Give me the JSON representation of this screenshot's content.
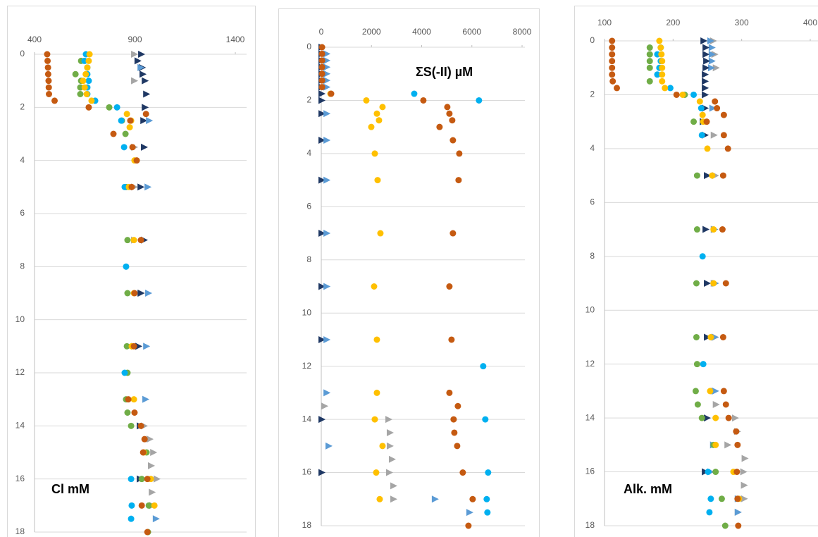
{
  "chart_data": [
    {
      "type": "scatter",
      "annotation": "Cl mM",
      "xlim": [
        400,
        1400
      ],
      "xticks": [
        400,
        900,
        1400
      ],
      "ylim": [
        0,
        18
      ],
      "yticks": [
        0,
        2,
        4,
        6,
        8,
        10,
        12,
        14,
        16,
        18
      ],
      "y_inverted": true,
      "x_axis_position": "top",
      "grid": true,
      "series": [
        {
          "color": "#a5a5a5",
          "marker": "triangle",
          "x": [
            895,
            895,
            895,
            895,
            895,
            930,
            895,
            944,
            972,
            990,
            979,
            1007,
            983,
            986
          ],
          "y": [
            0,
            1,
            3.5,
            5,
            7,
            9,
            11,
            14,
            14.5,
            15,
            15.5,
            16,
            16.5,
            17
          ]
        },
        {
          "color": "#1f3864",
          "marker": "triangle",
          "x": [
            930,
            912,
            934,
            937,
            948,
            955,
            948,
            941,
            944,
            927,
            944,
            927,
            916,
            923,
            923
          ],
          "y": [
            0,
            0.25,
            0.5,
            0.75,
            1,
            1.5,
            2,
            2.5,
            3.5,
            5,
            7,
            9,
            11,
            14,
            16
          ]
        },
        {
          "color": "#5b9bd5",
          "marker": "triangle",
          "x": [
            927,
            969,
            962,
            965,
            955,
            951,
            1003
          ],
          "y": [
            0.5,
            2.5,
            5,
            9,
            11,
            13,
            17.5
          ]
        },
        {
          "color": "#70ad47",
          "marker": "circle",
          "x": [
            632,
            604,
            632,
            628,
            628,
            772,
            835,
            853,
            856,
            863,
            863,
            860,
            863,
            856,
            863,
            881,
            958,
            934,
            969,
            965
          ],
          "y": [
            0.25,
            0.75,
            1,
            1.25,
            1.5,
            2,
            2.5,
            3,
            5,
            7,
            9,
            11,
            12,
            13,
            13.5,
            14,
            15,
            16,
            17,
            18
          ]
        },
        {
          "color": "#00b0f0",
          "marker": "circle",
          "x": [
            656,
            649,
            663,
            663,
            670,
            663,
            663,
            702,
            811,
            832,
            846,
            849,
            856,
            849,
            881,
            884,
            881
          ],
          "y": [
            0,
            0.25,
            0.5,
            0.75,
            1,
            1.25,
            1.5,
            1.75,
            2,
            2.5,
            3.5,
            5,
            8,
            12,
            16,
            17,
            17.5
          ]
        },
        {
          "color": "#ffc000",
          "marker": "circle",
          "x": [
            674,
            670,
            663,
            655,
            642,
            650,
            660,
            684,
            860,
            881,
            874,
            898,
            870,
            895,
            895,
            884,
            895,
            944,
            979,
            997
          ],
          "y": [
            0,
            0.25,
            0.5,
            0.75,
            1,
            1.25,
            1.5,
            1.75,
            2.25,
            2.5,
            2.75,
            4,
            5,
            7,
            9,
            11,
            13,
            15,
            16,
            17
          ]
        },
        {
          "color": "#c55a11",
          "marker": "circle",
          "x": [
            463,
            465,
            467,
            468,
            470,
            471,
            472,
            500,
            670,
            955,
            877,
            793,
            888,
            909,
            884,
            930,
            898,
            895,
            867,
            898,
            930,
            948,
            941,
            962,
            934,
            962
          ],
          "y": [
            0,
            0.25,
            0.5,
            0.75,
            1,
            1.25,
            1.5,
            1.75,
            2,
            2.25,
            2.5,
            3,
            3.5,
            4,
            5,
            7,
            9,
            11,
            13,
            13.5,
            14,
            14.5,
            15,
            16,
            17,
            18
          ]
        }
      ]
    },
    {
      "type": "scatter",
      "annotation": "ΣS(-II) µM",
      "xlim": [
        0,
        8000
      ],
      "xticks": [
        0,
        2000,
        4000,
        6000,
        8000
      ],
      "ylim": [
        0,
        18
      ],
      "yticks": [
        0,
        2,
        4,
        6,
        8,
        10,
        12,
        14,
        16,
        18
      ],
      "y_inverted": true,
      "x_axis_position": "top",
      "grid": true,
      "series": [
        {
          "color": "#a5a5a5",
          "marker": "triangle",
          "x": [
            112,
            2665,
            2721,
            2721,
            2805,
            2693,
            2861,
            2861
          ],
          "y": [
            13.5,
            14,
            14.5,
            15,
            15.5,
            16,
            16.5,
            17
          ]
        },
        {
          "color": "#1f3864",
          "marker": "triangle",
          "x": [
            0,
            0,
            0,
            0,
            0,
            0,
            0,
            0,
            0,
            0,
            0,
            0,
            0,
            0,
            0,
            0,
            0
          ],
          "y": [
            0,
            0.25,
            0.5,
            0.75,
            1,
            1.25,
            1.5,
            1.75,
            2,
            2.5,
            3.5,
            5,
            7,
            9,
            11,
            14,
            16
          ]
        },
        {
          "color": "#5b9bd5",
          "marker": "triangle",
          "x": [
            200,
            200,
            200,
            200,
            200,
            200,
            200,
            200,
            200,
            200,
            200,
            200,
            200,
            280,
            4516,
            5891
          ],
          "y": [
            0.25,
            0.5,
            0.75,
            1,
            1.25,
            1.5,
            2.5,
            3.5,
            5,
            7,
            9,
            11,
            13,
            15,
            17,
            17.5
          ]
        },
        {
          "color": "#00b0f0",
          "marker": "circle",
          "x": [
            3703,
            6283,
            6451,
            6535,
            6647,
            6591,
            6619
          ],
          "y": [
            1.75,
            2,
            12,
            14,
            16,
            17,
            17.5
          ]
        },
        {
          "color": "#ffc000",
          "marker": "circle",
          "x": [
            365,
            1795,
            2440,
            2216,
            2300,
            1992,
            2132,
            2244,
            2356,
            2104,
            2216,
            2216,
            2132,
            2440,
            2188,
            2328
          ],
          "y": [
            1.75,
            2,
            2.25,
            2.5,
            2.75,
            3,
            4,
            5,
            7,
            9,
            11,
            13,
            14,
            15,
            16,
            17
          ]
        },
        {
          "color": "#c55a11",
          "marker": "circle",
          "x": [
            30,
            30,
            30,
            30,
            30,
            30,
            30,
            393,
            4067,
            5021,
            5105,
            5217,
            4712,
            5245,
            5498,
            5470,
            5245,
            5105,
            5189,
            5105,
            5442,
            5273,
            5301,
            5414,
            5638,
            6031,
            5863
          ],
          "y": [
            0,
            0.25,
            0.5,
            0.75,
            1,
            1.25,
            1.5,
            1.75,
            2,
            2.25,
            2.5,
            2.75,
            3,
            3.5,
            4,
            5,
            7,
            9,
            11,
            13,
            13.5,
            14,
            14.5,
            15,
            16,
            17,
            18
          ]
        }
      ]
    },
    {
      "type": "scatter",
      "annotation": "Alk. mM",
      "xlim": [
        100,
        400
      ],
      "xticks": [
        100,
        200,
        300,
        400
      ],
      "ylim": [
        0,
        18
      ],
      "yticks": [
        0,
        2,
        4,
        6,
        8,
        10,
        12,
        14,
        16,
        18
      ],
      "y_inverted": true,
      "x_axis_position": "top",
      "grid": true,
      "series": [
        {
          "color": "#a5a5a5",
          "marker": "triangle",
          "x": [
            258,
            260,
            262,
            259,
            261,
            259,
            259,
            261,
            259,
            262,
            290,
            293,
            279,
            304,
            302,
            303,
            303,
            294
          ],
          "y": [
            0,
            0.5,
            1,
            3.5,
            5,
            7,
            9,
            11,
            13,
            13.5,
            14,
            14.5,
            15,
            15.5,
            16,
            16.5,
            17,
            17.5
          ]
        },
        {
          "color": "#5b9bd5",
          "marker": "triangle",
          "x": [
            254,
            256,
            256,
            256,
            255,
            257,
            260,
            261,
            260,
            261,
            258,
            254,
            294,
            294
          ],
          "y": [
            0,
            0.25,
            0.5,
            0.75,
            1,
            2.5,
            7,
            9,
            11,
            13,
            15,
            16,
            17,
            17.5
          ]
        },
        {
          "color": "#1f3864",
          "marker": "triangle",
          "x": [
            244,
            247,
            247,
            248,
            247,
            246,
            246,
            246,
            246,
            246,
            243,
            246,
            249,
            247,
            249,
            249,
            249,
            246
          ],
          "y": [
            0,
            0.25,
            0.5,
            0.75,
            1,
            1.25,
            1.5,
            1.75,
            2,
            2.5,
            3,
            3.5,
            5,
            7,
            9,
            11,
            14,
            16
          ]
        },
        {
          "color": "#70ad47",
          "marker": "circle",
          "x": [
            166,
            166,
            166,
            166,
            166,
            217,
            230,
            235,
            235,
            234,
            234,
            235,
            233,
            236,
            242,
            259,
            262,
            271,
            276
          ],
          "y": [
            0.25,
            0.5,
            0.75,
            1,
            1.5,
            2,
            3,
            5,
            7,
            9,
            11,
            12,
            13,
            13.5,
            14,
            15,
            16,
            17,
            18
          ]
        },
        {
          "color": "#00b0f0",
          "marker": "circle",
          "x": [
            182,
            177,
            182,
            180,
            177,
            196,
            230,
            241,
            242,
            243,
            244,
            251,
            255,
            253
          ],
          "y": [
            0.25,
            0.5,
            0.75,
            1,
            1.25,
            1.75,
            2,
            2.5,
            3.5,
            8,
            12,
            16,
            17,
            17.5
          ]
        },
        {
          "color": "#ffc000",
          "marker": "circle",
          "x": [
            180,
            182,
            183,
            184,
            184,
            184,
            184,
            188,
            214,
            239,
            243,
            244,
            250,
            257,
            259,
            259,
            255,
            254,
            262,
            262,
            288,
            296
          ],
          "y": [
            0,
            0.25,
            0.5,
            0.75,
            1,
            1.25,
            1.5,
            1.75,
            2,
            2.25,
            2.75,
            3,
            4,
            5,
            7,
            9,
            11,
            13,
            14,
            15,
            16,
            17
          ]
        },
        {
          "color": "#c55a11",
          "marker": "circle",
          "x": [
            111,
            111,
            111,
            111,
            111,
            111,
            112,
            118,
            205,
            261,
            264,
            274,
            249,
            274,
            280,
            273,
            272,
            277,
            273,
            274,
            277,
            281,
            292,
            294,
            293,
            294,
            295
          ],
          "y": [
            0,
            0.25,
            0.5,
            0.75,
            1,
            1.25,
            1.5,
            1.75,
            2,
            2.25,
            2.5,
            2.75,
            3,
            3.5,
            4,
            5,
            7,
            9,
            11,
            13,
            13.5,
            14,
            14.5,
            15,
            16,
            17,
            18
          ]
        }
      ]
    }
  ]
}
